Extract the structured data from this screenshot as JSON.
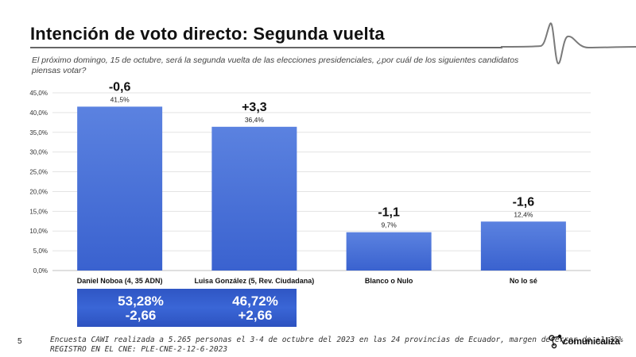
{
  "header": {
    "title": "Intención de voto directo: Segunda vuelta",
    "subtitle": "El próximo domingo, 15 de octubre, será la segunda vuelta de las elecciones presidenciales, ¿por cuál de los siguientes candidatos piensas votar?"
  },
  "chart_data": {
    "type": "bar",
    "categories": [
      "Daniel Noboa (4, 35 ADN)",
      "Luisa González (5, Rev. Ciudadana)",
      "Blanco o Nulo",
      "No lo sé"
    ],
    "values": [
      41.5,
      36.4,
      9.7,
      12.4
    ],
    "value_labels": [
      "41,5%",
      "36,4%",
      "9,7%",
      "12,4%"
    ],
    "change_labels": [
      "-0,6",
      "+3,3",
      "-1,1",
      "-1,6"
    ],
    "ylim": [
      0,
      45
    ],
    "yticks": [
      0,
      5,
      10,
      15,
      20,
      25,
      30,
      35,
      40,
      45
    ],
    "ytick_labels": [
      "0,0%",
      "5,0%",
      "10,0%",
      "15,0%",
      "20,0%",
      "25,0%",
      "30,0%",
      "35,0%",
      "40,0%",
      "45,0%"
    ],
    "grid": true,
    "bar_color": "#3a62cf",
    "bar_color_light": "#5b82e0"
  },
  "summary": {
    "noboa_pct": "53,28%",
    "noboa_change": "-2,66",
    "gonzalez_pct": "46,72%",
    "gonzalez_change": "+2,66"
  },
  "footer": {
    "page_number": "5",
    "note_line1": "Encuesta CAWI realizada a 5.265 personas el 3-4 de octubre del 2023 en las 24 provincias de Ecuador, margen de error de ±1,35%",
    "note_line2": "REGISTRO EN EL CNE: PLE-CNE-2-12-6-2023",
    "brand": "comunicaliza"
  }
}
